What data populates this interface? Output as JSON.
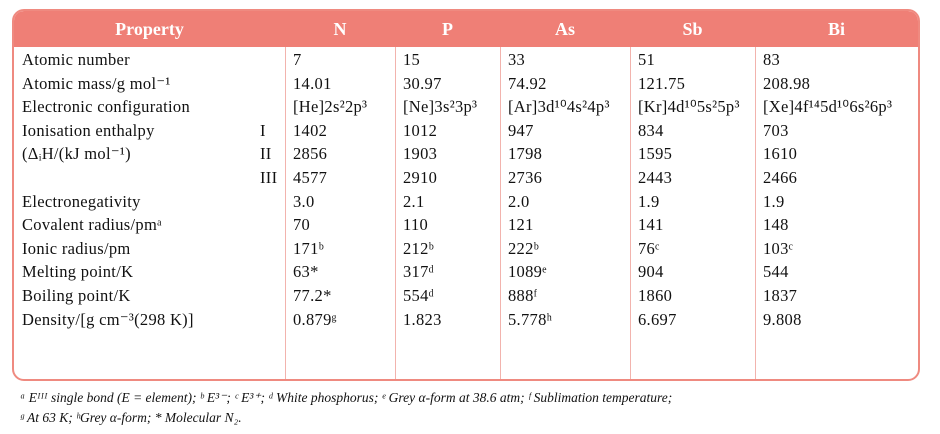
{
  "header": {
    "columns": [
      "Property",
      "N",
      "P",
      "As",
      "Sb",
      "Bi"
    ]
  },
  "rows": [
    {
      "label": "Atomic number",
      "values": [
        "7",
        "15",
        "33",
        "51",
        "83"
      ]
    },
    {
      "label": "Atomic mass/g mol⁻¹",
      "values": [
        "14.01",
        "30.97",
        "74.92",
        "121.75",
        "208.98"
      ]
    },
    {
      "label": "Electronic configuration",
      "values": [
        "[He]2s²2p³",
        "[Ne]3s²3p³",
        "[Ar]3d¹⁰4s²4p³",
        "[Kr]4d¹⁰5s²5p³",
        "[Xe]4f¹⁴5d¹⁰6s²6p³"
      ]
    },
    {
      "label": "Ionisation enthalpy",
      "sub": "I",
      "values": [
        "1402",
        "1012",
        "947",
        "834",
        "703"
      ]
    },
    {
      "label": "(ΔᵢH/(kJ mol⁻¹)",
      "sub": "II",
      "values": [
        "2856",
        "1903",
        "1798",
        "1595",
        "1610"
      ]
    },
    {
      "sub": "III",
      "values": [
        "4577",
        "2910",
        "2736",
        "2443",
        "2466"
      ]
    },
    {
      "label": "Electronegativity",
      "values": [
        "3.0",
        "2.1",
        "2.0",
        "1.9",
        "1.9"
      ]
    },
    {
      "label": "Covalent radius/pmᵃ",
      "values": [
        "70",
        "110",
        "121",
        "141",
        "148"
      ]
    },
    {
      "label": "Ionic radius/pm",
      "values": [
        "171ᵇ",
        "212ᵇ",
        "222ᵇ",
        "76ᶜ",
        "103ᶜ"
      ]
    },
    {
      "label": "Melting point/K",
      "values": [
        "63*",
        "317ᵈ",
        "1089ᵉ",
        "904",
        "544"
      ]
    },
    {
      "label": "Boiling point/K",
      "values": [
        "77.2*",
        "554ᵈ",
        "888ᶠ",
        "1860",
        "1837"
      ]
    },
    {
      "label": "Density/[g cm⁻³(298 K)]",
      "values": [
        "0.879ᵍ",
        "1.823",
        "5.778ʰ",
        "6.697",
        "9.808"
      ]
    }
  ],
  "footnote": {
    "lines": [
      "ᵃ Eᴵᴵᴵ single bond (E = element); ᵇ E³⁻; ᶜ E³⁺; ᵈ White phosphorus; ᵉ Grey α-form at 38.6 atm; ᶠ Sublimation temperature;",
      "ᵍ At 63 K; ʰGrey α-form; * Molecular N₂."
    ]
  }
}
